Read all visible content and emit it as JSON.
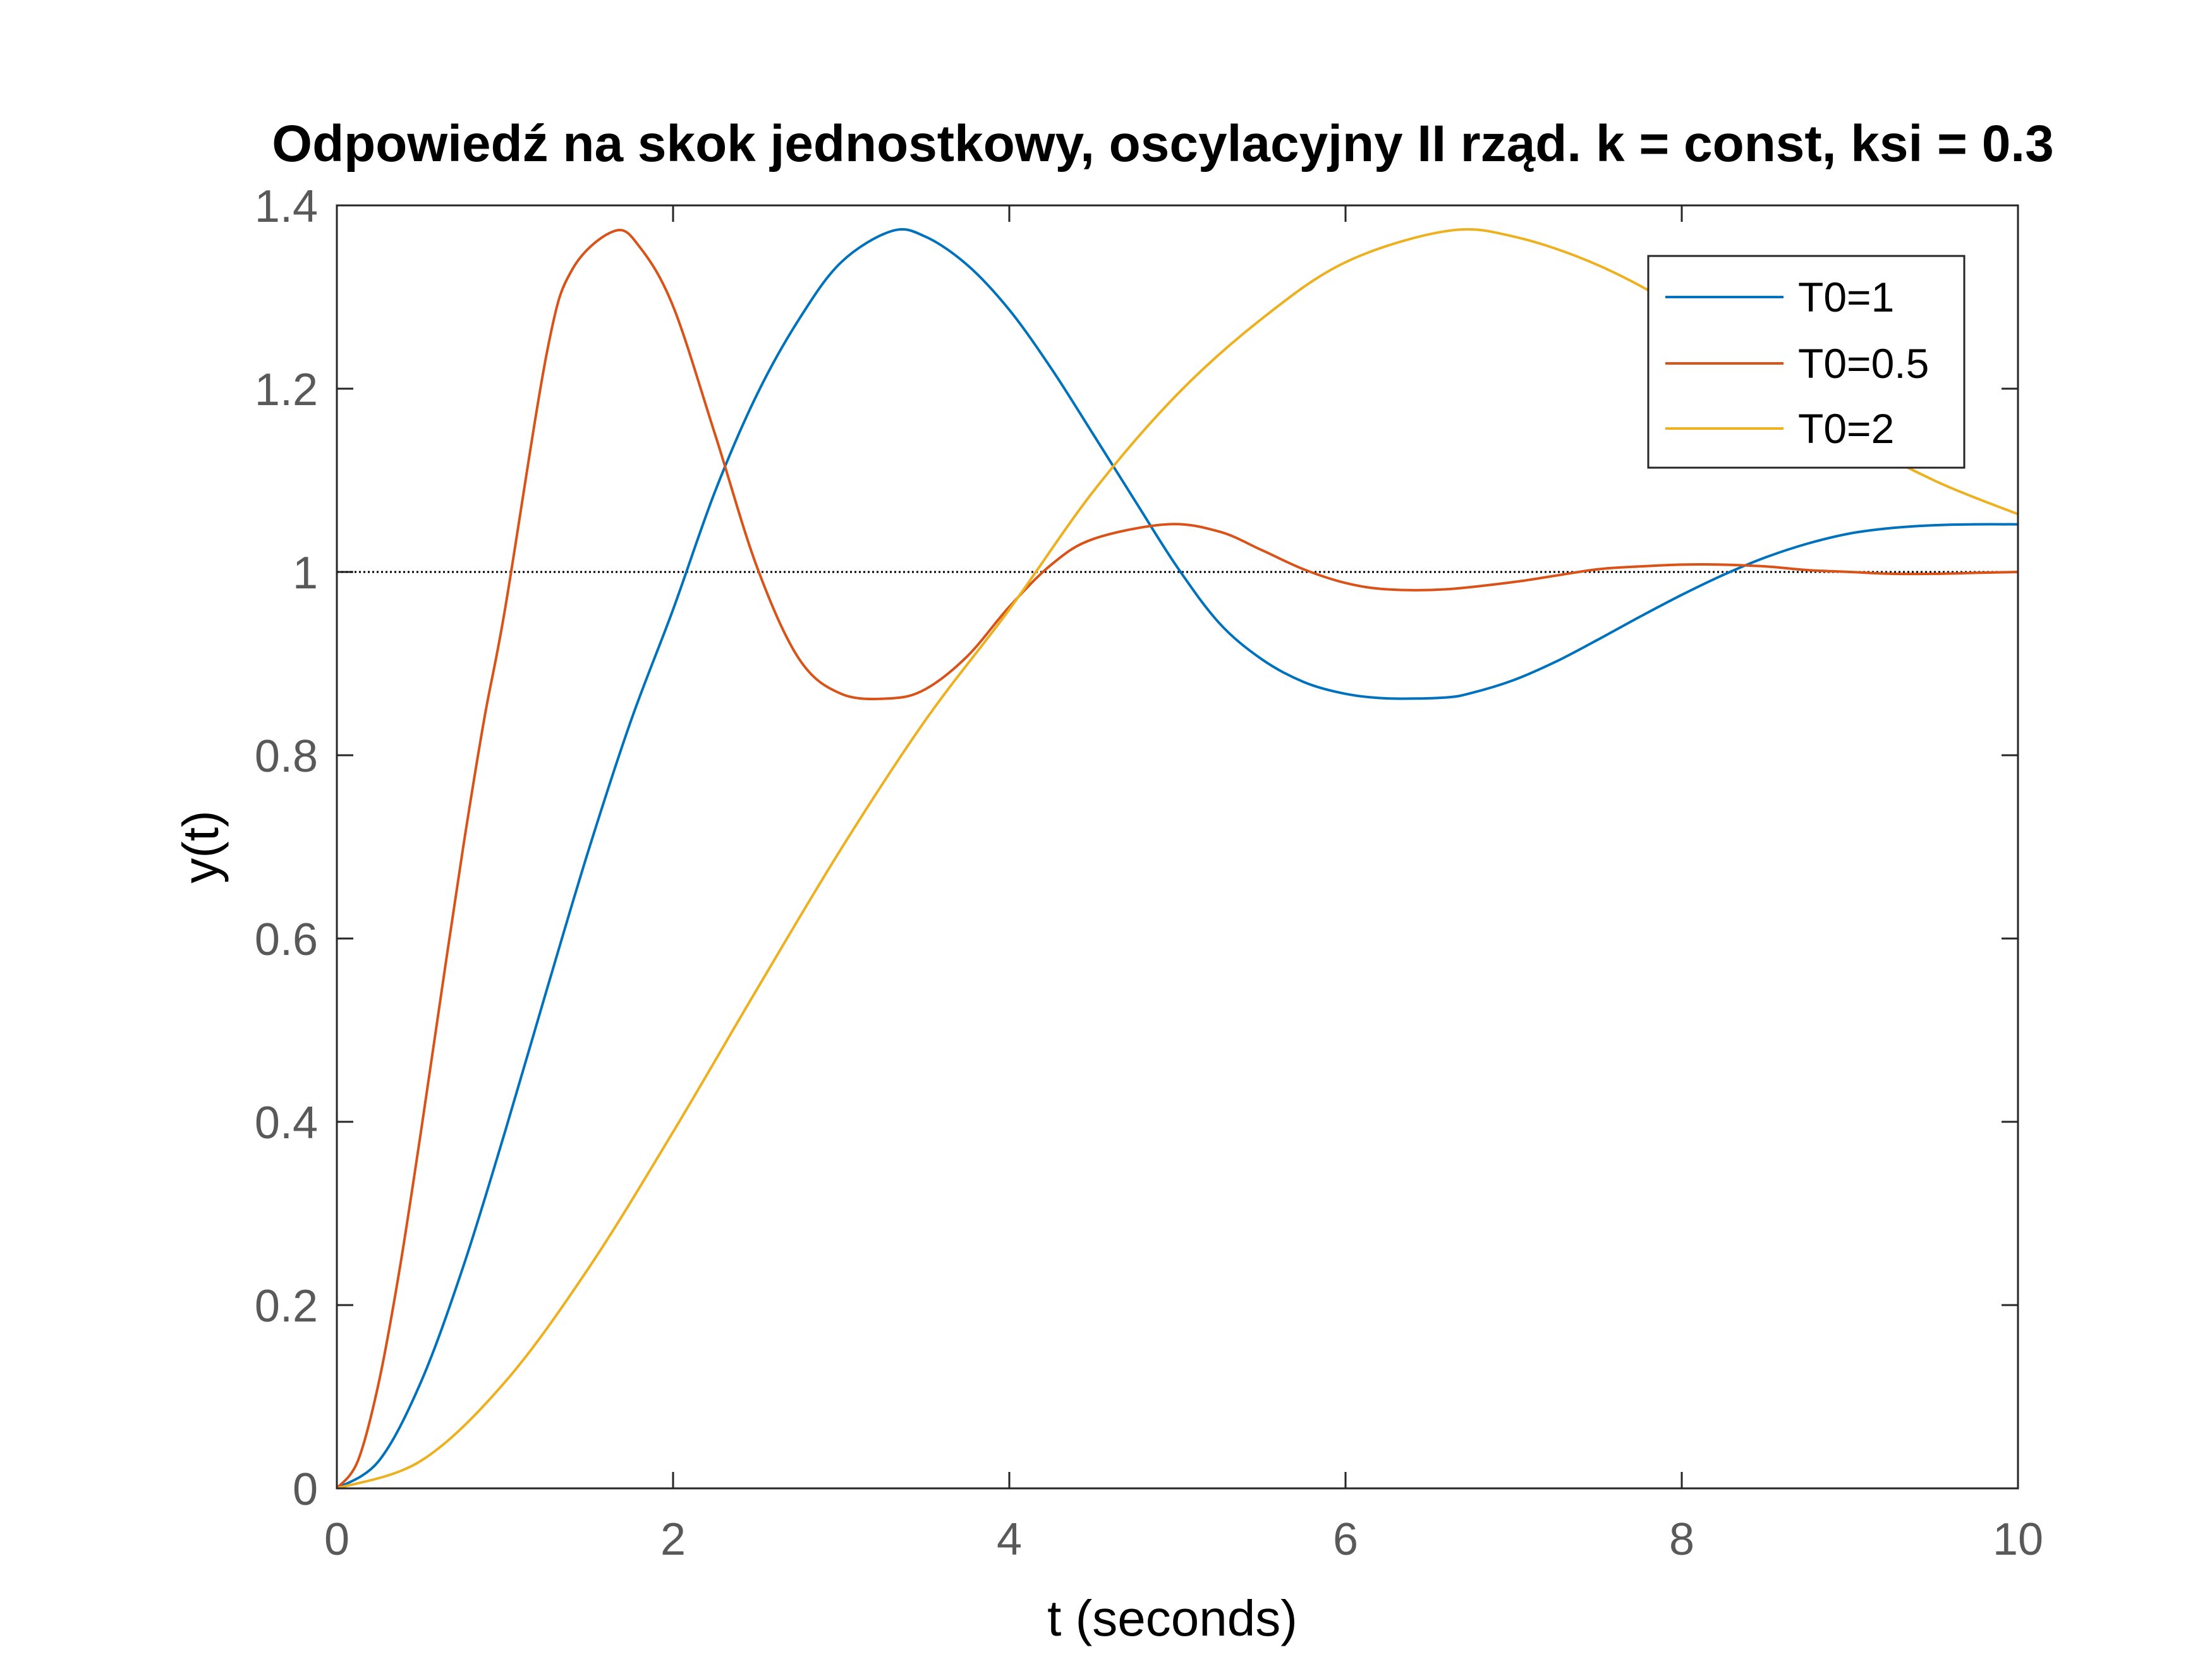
{
  "chart_data": {
    "type": "line",
    "title": "Odpowiedź na skok jednostkowy, oscylacyjny II rząd. k = const, ksi = 0.3",
    "xlabel": "t (seconds)",
    "ylabel": "y(t)",
    "xlim": [
      0,
      10
    ],
    "ylim": [
      0,
      1.4
    ],
    "xticks": [
      0,
      2,
      4,
      6,
      8,
      10
    ],
    "xtick_labels": [
      "0",
      "2",
      "4",
      "6",
      "8",
      "10"
    ],
    "yticks": [
      0,
      0.2,
      0.4,
      0.6,
      0.8,
      1,
      1.2,
      1.4
    ],
    "ytick_labels": [
      "0",
      "0.2",
      "0.4",
      "0.6",
      "0.8",
      "1",
      "1.2",
      "1.4"
    ],
    "grid": false,
    "legend_position": "top-right",
    "reference_line": {
      "y": 1,
      "style": "dotted",
      "color": "#000000"
    },
    "series": [
      {
        "name": "T0=1",
        "color": "#0072BD",
        "x": [
          0,
          0.25,
          0.5,
          0.75,
          1,
          1.25,
          1.5,
          1.75,
          2,
          2.25,
          2.5,
          2.75,
          3,
          3.3,
          3.5,
          3.75,
          4,
          4.25,
          4.5,
          4.75,
          5,
          5.25,
          5.5,
          5.75,
          6,
          6.25,
          6.59,
          6.75,
          7,
          7.25,
          7.5,
          7.75,
          8,
          8.25,
          8.5,
          8.75,
          9,
          9.25,
          9.5,
          9.75,
          10
        ],
        "y": [
          0,
          0.03,
          0.116,
          0.241,
          0.389,
          0.545,
          0.698,
          0.838,
          0.959,
          1.088,
          1.194,
          1.276,
          1.338,
          1.372,
          1.366,
          1.335,
          1.286,
          1.222,
          1.15,
          1.077,
          1.005,
          0.944,
          0.905,
          0.88,
          0.867,
          0.862,
          0.863,
          0.868,
          0.882,
          0.902,
          0.926,
          0.951,
          0.975,
          0.997,
          1.016,
          1.031,
          1.042,
          1.048,
          1.051,
          1.052,
          1.052
        ]
      },
      {
        "name": "T0=0.5",
        "color": "#D95319",
        "x": [
          0,
          0.125,
          0.25,
          0.375,
          0.5,
          0.625,
          0.75,
          0.875,
          1,
          1.25,
          1.4,
          1.65,
          1.8,
          2,
          2.25,
          2.5,
          2.75,
          3,
          3.29,
          3.5,
          3.75,
          4,
          4.25,
          4.5,
          4.94,
          5.25,
          5.5,
          5.75,
          6,
          6.25,
          6.59,
          7,
          7.25,
          7.5,
          7.75,
          8,
          8.23,
          8.5,
          8.75,
          9,
          9.25,
          9.5,
          9.75,
          10
        ],
        "y": [
          0,
          0.03,
          0.116,
          0.241,
          0.389,
          0.545,
          0.698,
          0.838,
          0.959,
          1.24,
          1.33,
          1.372,
          1.355,
          1.29,
          1.15,
          1.005,
          0.905,
          0.867,
          0.862,
          0.872,
          0.908,
          0.962,
          1.008,
          1.036,
          1.052,
          1.044,
          1.024,
          1.003,
          0.988,
          0.981,
          0.981,
          0.989,
          0.996,
          1.003,
          1.006,
          1.008,
          1.008,
          1.006,
          1.002,
          1.0,
          0.998,
          0.998,
          0.999,
          1.0
        ]
      },
      {
        "name": "T0=2",
        "color": "#EDB120",
        "x": [
          0,
          0.5,
          1,
          1.5,
          2,
          2.5,
          3,
          3.5,
          4,
          4.5,
          5,
          5.5,
          6,
          6.6,
          7,
          7.5,
          8,
          8.5,
          9,
          9.5,
          10
        ],
        "y": [
          0,
          0.03,
          0.116,
          0.241,
          0.389,
          0.545,
          0.698,
          0.838,
          0.959,
          1.088,
          1.194,
          1.276,
          1.338,
          1.372,
          1.366,
          1.335,
          1.286,
          1.222,
          1.15,
          1.1,
          1.063
        ]
      }
    ]
  }
}
